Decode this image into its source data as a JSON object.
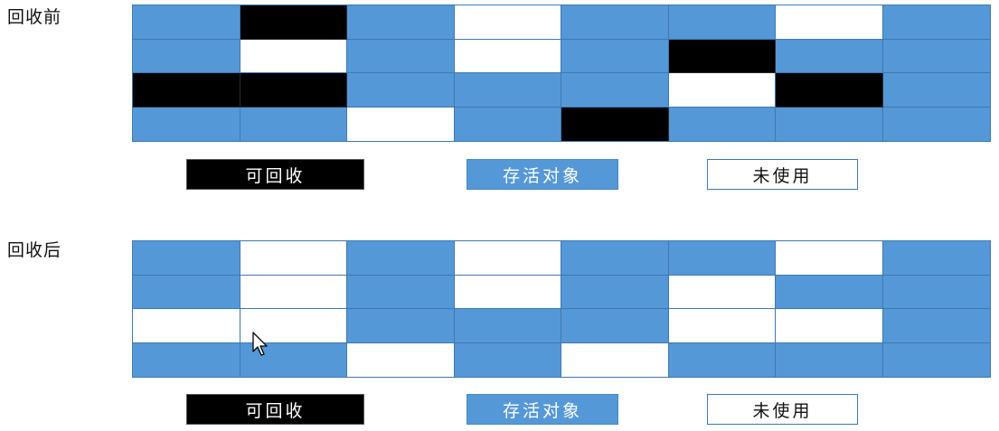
{
  "sections": {
    "before": {
      "label": "回收前",
      "cells": [
        [
          "live",
          "garbage",
          "live",
          "free",
          "live",
          "live",
          "free",
          "live"
        ],
        [
          "live",
          "free",
          "live",
          "free",
          "live",
          "garbage",
          "live",
          "live"
        ],
        [
          "garbage",
          "garbage",
          "live",
          "live",
          "live",
          "free",
          "garbage",
          "live"
        ],
        [
          "live",
          "live",
          "free",
          "live",
          "garbage",
          "live",
          "live",
          "live"
        ]
      ]
    },
    "after": {
      "label": "回收后",
      "cells": [
        [
          "live",
          "free",
          "live",
          "free",
          "live",
          "live",
          "free",
          "live"
        ],
        [
          "live",
          "free",
          "live",
          "free",
          "live",
          "free",
          "live",
          "live"
        ],
        [
          "free",
          "free",
          "live",
          "live",
          "live",
          "free",
          "free",
          "live"
        ],
        [
          "live",
          "live",
          "free",
          "live",
          "free",
          "live",
          "live",
          "live"
        ]
      ]
    }
  },
  "legend": {
    "garbage": "可回收",
    "live": "存活对象",
    "free": "未使用"
  },
  "colors": {
    "live": "#5598d7",
    "garbage": "#000000",
    "free": "#ffffff",
    "gridline": "#3e78b0"
  },
  "icons": {
    "cursor": "mouse-pointer-icon"
  }
}
